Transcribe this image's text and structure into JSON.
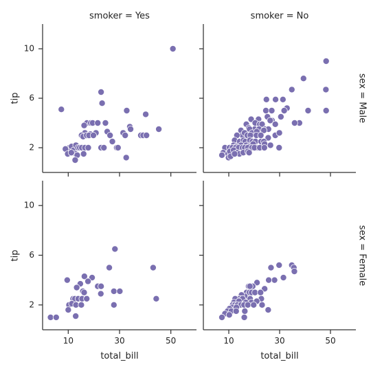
{
  "chart_data": {
    "type": "scatter",
    "figure": "facet-grid",
    "xlabel": "total_bill",
    "ylabel": "tip",
    "xlim": [
      0,
      60
    ],
    "ylim": [
      0,
      12
    ],
    "xticks": [
      10,
      30,
      50
    ],
    "yticks": [
      2,
      6,
      10
    ],
    "grid": false,
    "marker_color": "#7a6fb0",
    "col_titles": [
      "smoker = Yes",
      "smoker = No"
    ],
    "row_titles": [
      "sex = Male",
      "sex = Female"
    ],
    "panels": [
      {
        "row": 0,
        "col": 0,
        "points": [
          [
            50.8,
            10.0
          ],
          [
            22.8,
            6.5
          ],
          [
            23.2,
            5.6
          ],
          [
            7.3,
            5.1
          ],
          [
            32.8,
            5.0
          ],
          [
            40.2,
            4.7
          ],
          [
            17.3,
            4.0
          ],
          [
            18.8,
            4.0
          ],
          [
            19.5,
            4.0
          ],
          [
            21.5,
            4.0
          ],
          [
            24.5,
            4.0
          ],
          [
            16.2,
            3.8
          ],
          [
            34.0,
            3.7
          ],
          [
            34.3,
            3.5
          ],
          [
            45.3,
            3.5
          ],
          [
            25.2,
            3.3
          ],
          [
            16.5,
            3.2
          ],
          [
            18.6,
            3.1
          ],
          [
            20.8,
            3.2
          ],
          [
            31.4,
            3.2
          ],
          [
            15.2,
            3.0
          ],
          [
            15.8,
            2.9
          ],
          [
            17.2,
            3.0
          ],
          [
            18.1,
            3.0
          ],
          [
            19.8,
            3.0
          ],
          [
            26.3,
            3.0
          ],
          [
            32.2,
            3.0
          ],
          [
            38.3,
            3.0
          ],
          [
            39.2,
            3.0
          ],
          [
            40.5,
            3.0
          ],
          [
            27.2,
            2.5
          ],
          [
            10.5,
            2.0
          ],
          [
            11.3,
            2.1
          ],
          [
            12.1,
            1.8
          ],
          [
            13.0,
            2.2
          ],
          [
            13.8,
            2.0
          ],
          [
            14.5,
            2.0
          ],
          [
            15.3,
            2.0
          ],
          [
            16.5,
            2.0
          ],
          [
            17.8,
            2.0
          ],
          [
            22.8,
            2.0
          ],
          [
            23.9,
            2.0
          ],
          [
            28.9,
            2.0
          ],
          [
            29.4,
            2.0
          ],
          [
            8.9,
            1.9
          ],
          [
            12.9,
            1.5
          ],
          [
            16.0,
            1.5
          ],
          [
            9.8,
            1.5
          ],
          [
            11.2,
            1.6
          ],
          [
            13.5,
            1.4
          ],
          [
            12.7,
            1.0
          ],
          [
            32.6,
            1.2
          ]
        ]
      },
      {
        "row": 0,
        "col": 1,
        "points": [
          [
            48.3,
            9.0
          ],
          [
            39.4,
            7.6
          ],
          [
            34.8,
            6.7
          ],
          [
            48.2,
            6.7
          ],
          [
            28.4,
            5.9
          ],
          [
            31.3,
            5.9
          ],
          [
            24.8,
            5.9
          ],
          [
            32.9,
            5.2
          ],
          [
            24.6,
            5.0
          ],
          [
            26.9,
            5.0
          ],
          [
            31.8,
            5.0
          ],
          [
            41.2,
            5.0
          ],
          [
            48.3,
            5.0
          ],
          [
            30.5,
            4.5
          ],
          [
            25.2,
            4.5
          ],
          [
            21.7,
            4.3
          ],
          [
            27.0,
            4.2
          ],
          [
            18.8,
            4.3
          ],
          [
            20.4,
            4.0
          ],
          [
            26.3,
            4.2
          ],
          [
            22.2,
            3.9
          ],
          [
            23.1,
            3.9
          ],
          [
            28.3,
            3.9
          ],
          [
            16.9,
            3.9
          ],
          [
            17.9,
            3.6
          ],
          [
            20.2,
            3.5
          ],
          [
            21.9,
            3.5
          ],
          [
            24.3,
            3.5
          ],
          [
            25.6,
            3.5
          ],
          [
            18.2,
            3.5
          ],
          [
            14.8,
            3.4
          ],
          [
            15.4,
            3.0
          ],
          [
            16.2,
            3.2
          ],
          [
            19.1,
            3.2
          ],
          [
            21.0,
            3.3
          ],
          [
            23.8,
            3.4
          ],
          [
            13.2,
            3.0
          ],
          [
            17.3,
            3.0
          ],
          [
            18.5,
            3.0
          ],
          [
            20.9,
            3.0
          ],
          [
            22.6,
            3.0
          ],
          [
            25.5,
            2.8
          ],
          [
            28.3,
            3.0
          ],
          [
            29.9,
            3.2
          ],
          [
            37.8,
            4.0
          ],
          [
            35.9,
            4.0
          ],
          [
            12.3,
            2.6
          ],
          [
            14.3,
            2.5
          ],
          [
            15.8,
            2.6
          ],
          [
            16.5,
            2.5
          ],
          [
            18.3,
            2.6
          ],
          [
            19.3,
            2.5
          ],
          [
            20.5,
            2.5
          ],
          [
            22.7,
            2.5
          ],
          [
            23.8,
            2.5
          ],
          [
            11.9,
            2.2
          ],
          [
            13.0,
            2.1
          ],
          [
            14.8,
            2.2
          ],
          [
            16.9,
            2.2
          ],
          [
            18.0,
            2.1
          ],
          [
            19.6,
            2.3
          ],
          [
            21.1,
            2.0
          ],
          [
            24.1,
            2.3
          ],
          [
            26.4,
            2.2
          ],
          [
            8.5,
            2.0
          ],
          [
            10.3,
            2.0
          ],
          [
            11.4,
            2.0
          ],
          [
            12.7,
            2.0
          ],
          [
            13.9,
            2.0
          ],
          [
            15.4,
            2.0
          ],
          [
            16.3,
            2.0
          ],
          [
            17.5,
            2.0
          ],
          [
            19.1,
            2.0
          ],
          [
            20.1,
            2.0
          ],
          [
            22.2,
            2.0
          ],
          [
            24.0,
            2.0
          ],
          [
            29.8,
            2.0
          ],
          [
            7.8,
            1.6
          ],
          [
            9.7,
            1.5
          ],
          [
            10.4,
            1.7
          ],
          [
            11.9,
            1.8
          ],
          [
            13.4,
            1.6
          ],
          [
            14.2,
            1.5
          ],
          [
            15.7,
            1.6
          ],
          [
            17.5,
            1.7
          ],
          [
            7.3,
            1.4
          ],
          [
            9.9,
            1.2
          ],
          [
            10.7,
            1.3
          ],
          [
            12.3,
            1.5
          ],
          [
            18.0,
            1.6
          ]
        ]
      },
      {
        "row": 1,
        "col": 0,
        "points": [
          [
            28.2,
            6.5
          ],
          [
            26.0,
            5.0
          ],
          [
            43.1,
            5.0
          ],
          [
            16.3,
            4.3
          ],
          [
            19.3,
            4.2
          ],
          [
            9.6,
            4.0
          ],
          [
            14.7,
            3.7
          ],
          [
            17.7,
            3.9
          ],
          [
            21.5,
            3.5
          ],
          [
            22.8,
            3.5
          ],
          [
            13.3,
            3.4
          ],
          [
            15.7,
            3.1
          ],
          [
            16.2,
            3.0
          ],
          [
            27.8,
            3.1
          ],
          [
            30.1,
            3.1
          ],
          [
            22.7,
            2.9
          ],
          [
            11.9,
            2.5
          ],
          [
            12.6,
            2.5
          ],
          [
            13.9,
            2.5
          ],
          [
            15.4,
            2.5
          ],
          [
            17.2,
            2.5
          ],
          [
            44.3,
            2.5
          ],
          [
            10.3,
            2.0
          ],
          [
            11.4,
            2.1
          ],
          [
            13.0,
            2.0
          ],
          [
            15.1,
            2.0
          ],
          [
            27.8,
            2.0
          ],
          [
            10.0,
            1.6
          ],
          [
            12.9,
            1.1
          ],
          [
            3.1,
            1.0
          ],
          [
            5.3,
            1.0
          ]
        ]
      },
      {
        "row": 1,
        "col": 1,
        "points": [
          [
            29.8,
            5.2
          ],
          [
            34.8,
            5.2
          ],
          [
            35.6,
            5.0
          ],
          [
            26.6,
            5.0
          ],
          [
            35.8,
            4.7
          ],
          [
            31.5,
            4.2
          ],
          [
            28.0,
            4.0
          ],
          [
            25.7,
            4.0
          ],
          [
            21.1,
            3.8
          ],
          [
            19.4,
            3.5
          ],
          [
            17.8,
            3.5
          ],
          [
            18.3,
            3.5
          ],
          [
            24.1,
            3.3
          ],
          [
            17.0,
            3.0
          ],
          [
            18.1,
            3.0
          ],
          [
            19.0,
            3.0
          ],
          [
            20.3,
            3.0
          ],
          [
            22.5,
            3.0
          ],
          [
            16.3,
            2.7
          ],
          [
            15.0,
            2.8
          ],
          [
            13.3,
            2.5
          ],
          [
            14.2,
            2.5
          ],
          [
            15.4,
            2.5
          ],
          [
            18.4,
            2.5
          ],
          [
            22.8,
            2.5
          ],
          [
            12.5,
            2.5
          ],
          [
            12.0,
            2.2
          ],
          [
            14.0,
            2.3
          ],
          [
            16.7,
            2.2
          ],
          [
            18.9,
            2.2
          ],
          [
            23.1,
            2.0
          ],
          [
            11.5,
            2.0
          ],
          [
            12.4,
            2.0
          ],
          [
            13.4,
            2.0
          ],
          [
            14.8,
            2.0
          ],
          [
            16.0,
            2.0
          ],
          [
            17.5,
            2.0
          ],
          [
            11.3,
            1.8
          ],
          [
            13.0,
            1.8
          ],
          [
            10.3,
            1.7
          ],
          [
            9.5,
            1.5
          ],
          [
            11.0,
            1.5
          ],
          [
            12.9,
            1.5
          ],
          [
            16.3,
            1.5
          ],
          [
            8.5,
            1.3
          ],
          [
            7.3,
            1.0
          ],
          [
            10.2,
            1.2
          ],
          [
            16.1,
            1.0
          ],
          [
            25.5,
            1.6
          ],
          [
            21.0,
            2.3
          ],
          [
            19.8,
            2.0
          ]
        ]
      }
    ]
  }
}
